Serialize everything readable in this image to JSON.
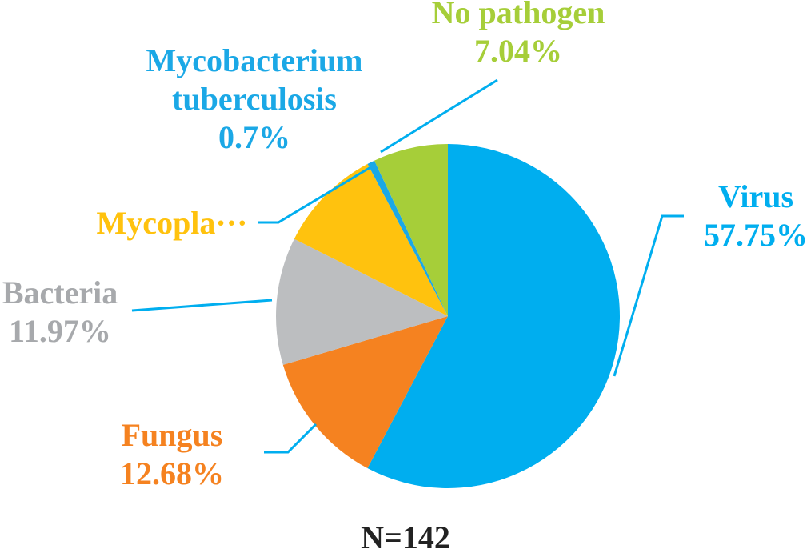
{
  "chart_data": {
    "type": "pie",
    "title": "N=142",
    "categories": [
      "Virus",
      "Fungus",
      "Bacteria",
      "Mycopla···",
      "Mycobacterium tuberculosis",
      "No pathogen"
    ],
    "values": [
      57.75,
      12.68,
      11.97,
      9.86,
      0.7,
      7.04
    ],
    "value_labels": [
      "57.75%",
      "12.68%",
      "11.97%",
      null,
      "0.7%",
      "7.04%"
    ],
    "colors": [
      "#00aeef",
      "#f58220",
      "#bcbec0",
      "#ffc20e",
      "#1ba8e6",
      "#a6ce39"
    ]
  }
}
